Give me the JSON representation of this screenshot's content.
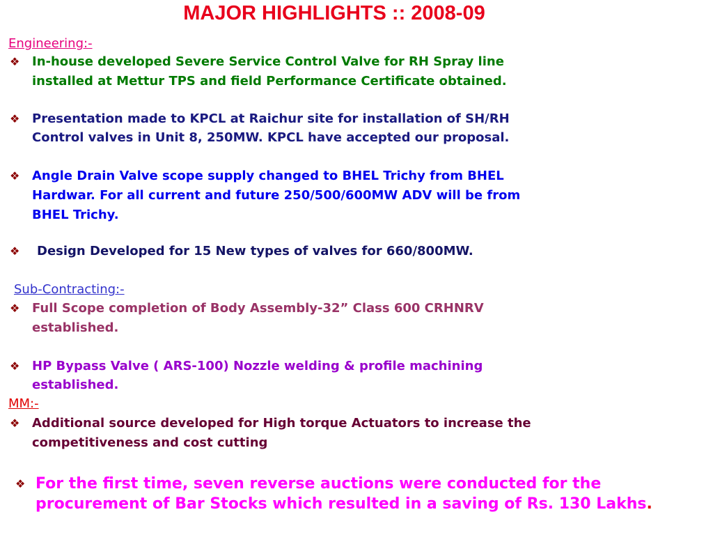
{
  "title": "MAJOR HIGHLIGHTS :: 2008-09",
  "sections": [
    {
      "heading": "Engineering:-",
      "items": [
        {
          "lines": [
            "In-house developed Severe Service Control Valve for RH Spray line",
            "installed at Mettur TPS and field Performance Certificate obtained."
          ]
        },
        {
          "lines": [
            "Presentation made to KPCL at Raichur site for installation of SH/RH",
            "Control valves in Unit 8, 250MW. KPCL have accepted our proposal."
          ]
        },
        {
          "lines": [
            "Angle Drain Valve scope supply changed to BHEL Trichy from BHEL",
            "Hardwar.  For all current and future 250/500/600MW ADV will be from",
            "BHEL Trichy."
          ]
        },
        {
          "lines": [
            "Design Developed for 15 New types of valves for 660/800MW."
          ]
        }
      ]
    },
    {
      "heading": "Sub-Contracting:-",
      "items": [
        {
          "lines": [
            "Full Scope completion of Body Assembly-32” Class 600 CRHNRV",
            "established."
          ]
        },
        {
          "lines": [
            "HP Bypass Valve ( ARS-100) Nozzle welding & profile machining",
            "established."
          ]
        }
      ]
    },
    {
      "heading": "MM:-",
      "items": [
        {
          "lines": [
            "Additional source developed for High torque  Actuators to increase the",
            "competitiveness and cost cutting"
          ]
        },
        {
          "lines": [
            "For the first time, seven reverse auctions were conducted for the",
            "procurement of Bar Stocks which resulted in a saving of Rs. 130 Lakhs"
          ],
          "tail": "."
        }
      ]
    }
  ]
}
